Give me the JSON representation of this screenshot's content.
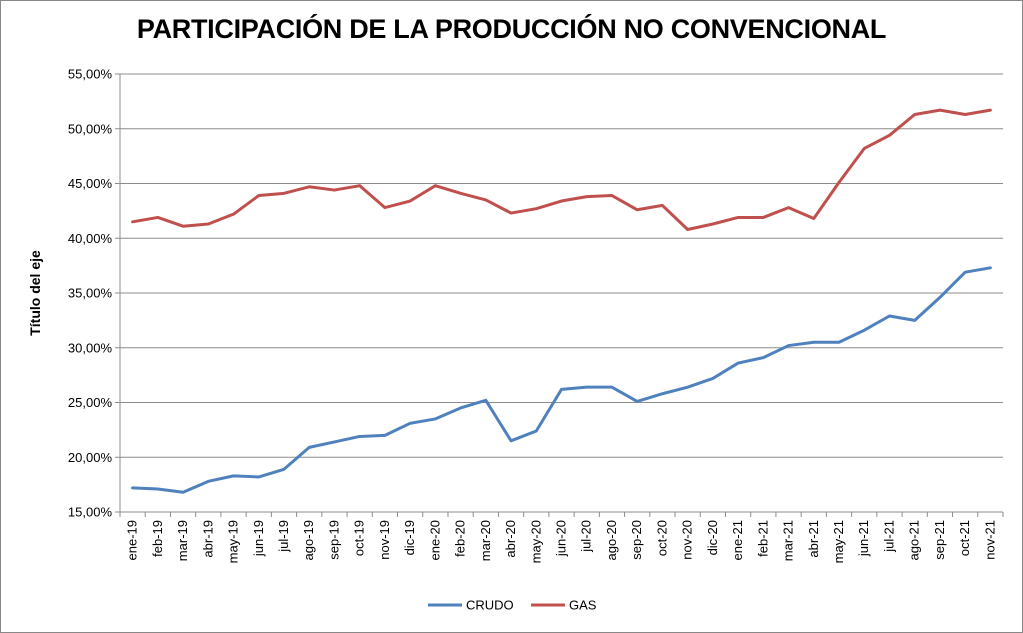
{
  "chart_data": {
    "type": "line",
    "title": "PARTICIPACIÓN DE LA PRODUCCIÓN NO CONVENCIONAL",
    "xlabel": "",
    "ylabel": "Título del eje",
    "ylim": [
      0.15,
      0.55
    ],
    "yticks": [
      "15,00%",
      "20,00%",
      "25,00%",
      "30,00%",
      "35,00%",
      "40,00%",
      "45,00%",
      "50,00%",
      "55,00%"
    ],
    "categories": [
      "ene-19",
      "feb-19",
      "mar-19",
      "abr-19",
      "may-19",
      "jun-19",
      "jul-19",
      "ago-19",
      "sep-19",
      "oct-19",
      "nov-19",
      "dic-19",
      "ene-20",
      "feb-20",
      "mar-20",
      "abr-20",
      "may-20",
      "jun-20",
      "jul-20",
      "ago-20",
      "sep-20",
      "oct-20",
      "nov-20",
      "dic-20",
      "ene-21",
      "feb-21",
      "mar-21",
      "abr-21",
      "may-21",
      "jun-21",
      "jul-21",
      "ago-21",
      "sep-21",
      "oct-21",
      "nov-21"
    ],
    "series": [
      {
        "name": "CRUDO",
        "color": "#4F81BD",
        "values": [
          0.172,
          0.171,
          0.168,
          0.178,
          0.183,
          0.182,
          0.189,
          0.209,
          0.214,
          0.219,
          0.22,
          0.231,
          0.235,
          0.245,
          0.252,
          0.215,
          0.224,
          0.262,
          0.264,
          0.264,
          0.251,
          0.258,
          0.264,
          0.272,
          0.286,
          0.291,
          0.302,
          0.305,
          0.305,
          0.316,
          0.329,
          0.325,
          0.346,
          0.369,
          0.373
        ]
      },
      {
        "name": "GAS",
        "color": "#C0504D",
        "values": [
          0.415,
          0.419,
          0.411,
          0.413,
          0.422,
          0.439,
          0.441,
          0.447,
          0.444,
          0.448,
          0.428,
          0.434,
          0.448,
          0.441,
          0.435,
          0.423,
          0.427,
          0.434,
          0.438,
          0.439,
          0.426,
          0.43,
          0.408,
          0.413,
          0.419,
          0.419,
          0.428,
          0.418,
          0.451,
          0.482,
          0.494,
          0.513,
          0.517,
          0.513,
          0.517
        ]
      }
    ],
    "legend": "bottom"
  }
}
